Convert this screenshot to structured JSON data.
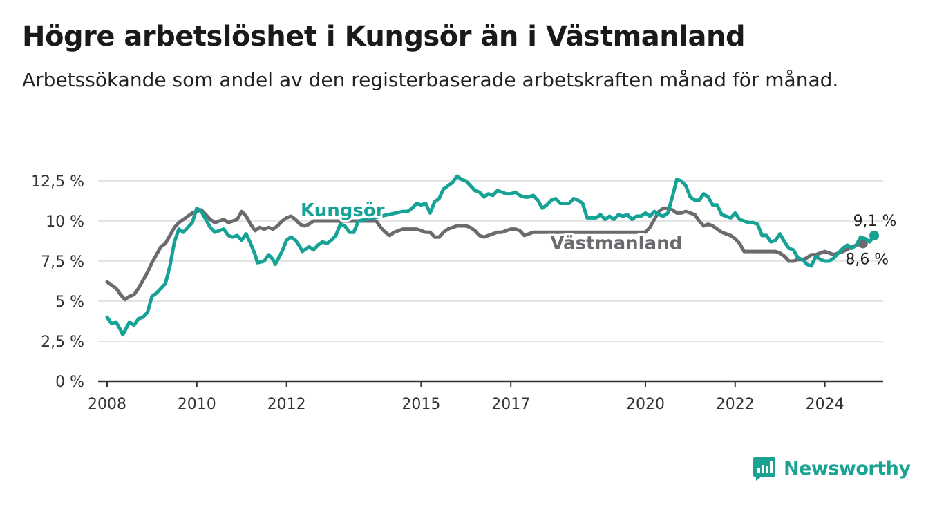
{
  "title": "Högre arbetslöshet i Kungsör än i Västmanland",
  "subtitle": "Arbetssökande som andel av den registerbaserade arbetskraften månad för månad.",
  "brand": {
    "name": "Newsworthy",
    "icon": "newsworthy-logo-icon",
    "color": "#1aa293"
  },
  "chart_data": {
    "type": "line",
    "x_unit": "year",
    "y_unit": "%",
    "ylim": [
      0,
      12.5
    ],
    "xlim": [
      2007.8,
      2025.0
    ],
    "y_ticks": [
      {
        "value": 0,
        "label": "0 %"
      },
      {
        "value": 2.5,
        "label": "2,5 %"
      },
      {
        "value": 5,
        "label": "5 %"
      },
      {
        "value": 7.5,
        "label": "7,5 %"
      },
      {
        "value": 10,
        "label": "10 %"
      },
      {
        "value": 12.5,
        "label": "12,5 %"
      }
    ],
    "x_ticks": [
      {
        "value": 2008,
        "label": "2008"
      },
      {
        "value": 2010,
        "label": "2010"
      },
      {
        "value": 2012,
        "label": "2012"
      },
      {
        "value": 2015,
        "label": "2015"
      },
      {
        "value": 2017,
        "label": "2017"
      },
      {
        "value": 2020,
        "label": "2020"
      },
      {
        "value": 2022,
        "label": "2022"
      },
      {
        "value": 2024,
        "label": "2024"
      }
    ],
    "grid": true,
    "series": [
      {
        "name": "Västmanland",
        "color": "#6b6a6e",
        "end_label": "8,6 %",
        "points": [
          [
            2008.0,
            6.2
          ],
          [
            2008.1,
            6.0
          ],
          [
            2008.2,
            5.8
          ],
          [
            2008.3,
            5.4
          ],
          [
            2008.4,
            5.1
          ],
          [
            2008.5,
            5.3
          ],
          [
            2008.6,
            5.4
          ],
          [
            2008.7,
            5.8
          ],
          [
            2008.8,
            6.3
          ],
          [
            2008.9,
            6.8
          ],
          [
            2009.0,
            7.4
          ],
          [
            2009.1,
            7.9
          ],
          [
            2009.2,
            8.4
          ],
          [
            2009.3,
            8.6
          ],
          [
            2009.4,
            9.1
          ],
          [
            2009.5,
            9.6
          ],
          [
            2009.6,
            9.9
          ],
          [
            2009.7,
            10.1
          ],
          [
            2009.8,
            10.3
          ],
          [
            2009.9,
            10.5
          ],
          [
            2010.0,
            10.6
          ],
          [
            2010.1,
            10.7
          ],
          [
            2010.2,
            10.4
          ],
          [
            2010.3,
            10.1
          ],
          [
            2010.4,
            9.9
          ],
          [
            2010.5,
            10.0
          ],
          [
            2010.6,
            10.1
          ],
          [
            2010.7,
            9.9
          ],
          [
            2010.8,
            10.0
          ],
          [
            2010.9,
            10.1
          ],
          [
            2011.0,
            10.6
          ],
          [
            2011.1,
            10.3
          ],
          [
            2011.2,
            9.8
          ],
          [
            2011.3,
            9.4
          ],
          [
            2011.4,
            9.6
          ],
          [
            2011.5,
            9.5
          ],
          [
            2011.6,
            9.6
          ],
          [
            2011.7,
            9.5
          ],
          [
            2011.8,
            9.7
          ],
          [
            2011.9,
            10.0
          ],
          [
            2012.0,
            10.2
          ],
          [
            2012.1,
            10.3
          ],
          [
            2012.2,
            10.1
          ],
          [
            2012.3,
            9.8
          ],
          [
            2012.4,
            9.7
          ],
          [
            2012.5,
            9.8
          ],
          [
            2012.6,
            10.0
          ],
          [
            2014.0,
            10.0
          ],
          [
            2014.1,
            9.6
          ],
          [
            2014.2,
            9.3
          ],
          [
            2014.3,
            9.1
          ],
          [
            2014.4,
            9.3
          ],
          [
            2014.5,
            9.4
          ],
          [
            2014.6,
            9.5
          ],
          [
            2014.7,
            9.5
          ],
          [
            2014.8,
            9.5
          ],
          [
            2014.9,
            9.5
          ],
          [
            2015.0,
            9.4
          ],
          [
            2015.1,
            9.3
          ],
          [
            2015.2,
            9.3
          ],
          [
            2015.3,
            9.0
          ],
          [
            2015.4,
            9.0
          ],
          [
            2015.5,
            9.3
          ],
          [
            2015.6,
            9.5
          ],
          [
            2015.7,
            9.6
          ],
          [
            2015.8,
            9.7
          ],
          [
            2015.9,
            9.7
          ],
          [
            2016.0,
            9.7
          ],
          [
            2016.1,
            9.6
          ],
          [
            2016.2,
            9.4
          ],
          [
            2016.3,
            9.1
          ],
          [
            2016.4,
            9.0
          ],
          [
            2016.5,
            9.1
          ],
          [
            2016.6,
            9.2
          ],
          [
            2016.7,
            9.3
          ],
          [
            2016.8,
            9.3
          ],
          [
            2016.9,
            9.4
          ],
          [
            2017.0,
            9.5
          ],
          [
            2017.1,
            9.5
          ],
          [
            2017.2,
            9.4
          ],
          [
            2017.3,
            9.1
          ],
          [
            2017.4,
            9.2
          ],
          [
            2017.5,
            9.3
          ],
          [
            2017.7,
            9.3
          ],
          [
            2017.85,
            9.3
          ],
          [
            2020.0,
            9.3
          ],
          [
            2020.1,
            9.6
          ],
          [
            2020.2,
            10.1
          ],
          [
            2020.3,
            10.6
          ],
          [
            2020.4,
            10.8
          ],
          [
            2020.5,
            10.8
          ],
          [
            2020.6,
            10.7
          ],
          [
            2020.7,
            10.5
          ],
          [
            2020.8,
            10.5
          ],
          [
            2020.9,
            10.6
          ],
          [
            2021.0,
            10.5
          ],
          [
            2021.1,
            10.4
          ],
          [
            2021.2,
            10.0
          ],
          [
            2021.3,
            9.7
          ],
          [
            2021.4,
            9.8
          ],
          [
            2021.5,
            9.7
          ],
          [
            2021.6,
            9.5
          ],
          [
            2021.7,
            9.3
          ],
          [
            2021.8,
            9.2
          ],
          [
            2021.9,
            9.1
          ],
          [
            2022.0,
            8.9
          ],
          [
            2022.1,
            8.6
          ],
          [
            2022.2,
            8.1
          ],
          [
            2022.3,
            8.1
          ],
          [
            2022.4,
            8.1
          ],
          [
            2022.5,
            8.1
          ],
          [
            2022.6,
            8.1
          ],
          [
            2022.7,
            8.1
          ],
          [
            2022.8,
            8.1
          ],
          [
            2022.9,
            8.1
          ],
          [
            2023.0,
            8.0
          ],
          [
            2023.1,
            7.8
          ],
          [
            2023.2,
            7.5
          ],
          [
            2023.3,
            7.5
          ],
          [
            2023.4,
            7.6
          ],
          [
            2023.5,
            7.6
          ],
          [
            2023.6,
            7.7
          ],
          [
            2023.7,
            7.9
          ],
          [
            2023.8,
            7.9
          ],
          [
            2023.9,
            8.0
          ],
          [
            2024.0,
            8.1
          ],
          [
            2024.1,
            8.0
          ],
          [
            2024.2,
            7.9
          ],
          [
            2024.4,
            8.1
          ],
          [
            2024.55,
            8.3
          ],
          [
            2024.7,
            8.5
          ],
          [
            2024.85,
            8.6
          ]
        ]
      },
      {
        "name": "Kungsör",
        "color": "#17a296",
        "end_label": "9,1 %",
        "points": [
          [
            2008.0,
            4.0
          ],
          [
            2008.1,
            3.6
          ],
          [
            2008.2,
            3.7
          ],
          [
            2008.3,
            3.2
          ],
          [
            2008.35,
            2.9
          ],
          [
            2008.5,
            3.7
          ],
          [
            2008.6,
            3.5
          ],
          [
            2008.7,
            3.9
          ],
          [
            2008.8,
            4.0
          ],
          [
            2008.9,
            4.3
          ],
          [
            2009.0,
            5.3
          ],
          [
            2009.1,
            5.5
          ],
          [
            2009.2,
            5.8
          ],
          [
            2009.3,
            6.1
          ],
          [
            2009.4,
            7.2
          ],
          [
            2009.5,
            8.7
          ],
          [
            2009.6,
            9.5
          ],
          [
            2009.7,
            9.3
          ],
          [
            2009.8,
            9.6
          ],
          [
            2009.9,
            9.9
          ],
          [
            2010.0,
            10.8
          ],
          [
            2010.1,
            10.6
          ],
          [
            2010.2,
            10.1
          ],
          [
            2010.3,
            9.6
          ],
          [
            2010.4,
            9.3
          ],
          [
            2010.5,
            9.4
          ],
          [
            2010.6,
            9.5
          ],
          [
            2010.7,
            9.1
          ],
          [
            2010.8,
            9.0
          ],
          [
            2010.9,
            9.1
          ],
          [
            2011.0,
            8.8
          ],
          [
            2011.1,
            9.2
          ],
          [
            2011.2,
            8.6
          ],
          [
            2011.3,
            7.9
          ],
          [
            2011.35,
            7.4
          ],
          [
            2011.5,
            7.5
          ],
          [
            2011.6,
            7.9
          ],
          [
            2011.7,
            7.6
          ],
          [
            2011.75,
            7.3
          ],
          [
            2011.9,
            8.1
          ],
          [
            2012.0,
            8.8
          ],
          [
            2012.1,
            9.0
          ],
          [
            2012.2,
            8.8
          ],
          [
            2012.3,
            8.4
          ],
          [
            2012.35,
            8.1
          ],
          [
            2012.5,
            8.4
          ],
          [
            2012.6,
            8.2
          ],
          [
            2012.7,
            8.5
          ],
          [
            2012.8,
            8.7
          ],
          [
            2012.9,
            8.6
          ],
          [
            2013.0,
            8.8
          ],
          [
            2013.1,
            9.1
          ],
          [
            2013.2,
            9.8
          ],
          [
            2013.3,
            9.7
          ],
          [
            2013.4,
            9.3
          ],
          [
            2013.5,
            9.3
          ],
          [
            2013.6,
            10.0
          ],
          [
            2014.6,
            10.6
          ],
          [
            2014.7,
            10.6
          ],
          [
            2014.8,
            10.8
          ],
          [
            2014.9,
            11.1
          ],
          [
            2015.0,
            11.0
          ],
          [
            2015.1,
            11.1
          ],
          [
            2015.2,
            10.5
          ],
          [
            2015.3,
            11.2
          ],
          [
            2015.4,
            11.4
          ],
          [
            2015.5,
            12.0
          ],
          [
            2015.6,
            12.2
          ],
          [
            2015.7,
            12.4
          ],
          [
            2015.8,
            12.8
          ],
          [
            2015.9,
            12.6
          ],
          [
            2016.0,
            12.5
          ],
          [
            2016.1,
            12.2
          ],
          [
            2016.2,
            11.9
          ],
          [
            2016.3,
            11.8
          ],
          [
            2016.4,
            11.5
          ],
          [
            2016.5,
            11.7
          ],
          [
            2016.6,
            11.6
          ],
          [
            2016.7,
            11.9
          ],
          [
            2016.8,
            11.8
          ],
          [
            2016.9,
            11.7
          ],
          [
            2017.0,
            11.7
          ],
          [
            2017.1,
            11.8
          ],
          [
            2017.2,
            11.6
          ],
          [
            2017.3,
            11.5
          ],
          [
            2017.4,
            11.5
          ],
          [
            2017.5,
            11.6
          ],
          [
            2017.6,
            11.3
          ],
          [
            2017.7,
            10.8
          ],
          [
            2017.8,
            11.0
          ],
          [
            2017.9,
            11.3
          ],
          [
            2018.0,
            11.4
          ],
          [
            2018.1,
            11.1
          ],
          [
            2018.2,
            11.1
          ],
          [
            2018.3,
            11.1
          ],
          [
            2018.4,
            11.4
          ],
          [
            2018.5,
            11.3
          ],
          [
            2018.6,
            11.1
          ],
          [
            2018.7,
            10.2
          ],
          [
            2018.8,
            10.2
          ],
          [
            2018.9,
            10.2
          ],
          [
            2019.0,
            10.4
          ],
          [
            2019.1,
            10.1
          ],
          [
            2019.2,
            10.3
          ],
          [
            2019.3,
            10.1
          ],
          [
            2019.4,
            10.4
          ],
          [
            2019.5,
            10.3
          ],
          [
            2019.6,
            10.4
          ],
          [
            2019.7,
            10.1
          ],
          [
            2019.8,
            10.3
          ],
          [
            2019.9,
            10.3
          ],
          [
            2020.0,
            10.5
          ],
          [
            2020.1,
            10.3
          ],
          [
            2020.2,
            10.6
          ],
          [
            2020.3,
            10.4
          ],
          [
            2020.4,
            10.3
          ],
          [
            2020.5,
            10.5
          ],
          [
            2020.6,
            11.5
          ],
          [
            2020.7,
            12.6
          ],
          [
            2020.8,
            12.5
          ],
          [
            2020.9,
            12.2
          ],
          [
            2021.0,
            11.5
          ],
          [
            2021.1,
            11.3
          ],
          [
            2021.2,
            11.3
          ],
          [
            2021.3,
            11.7
          ],
          [
            2021.4,
            11.5
          ],
          [
            2021.5,
            11.0
          ],
          [
            2021.6,
            11.0
          ],
          [
            2021.7,
            10.4
          ],
          [
            2021.8,
            10.3
          ],
          [
            2021.9,
            10.2
          ],
          [
            2022.0,
            10.5
          ],
          [
            2022.1,
            10.1
          ],
          [
            2022.2,
            10.0
          ],
          [
            2022.3,
            9.9
          ],
          [
            2022.4,
            9.9
          ],
          [
            2022.5,
            9.8
          ],
          [
            2022.6,
            9.1
          ],
          [
            2022.7,
            9.1
          ],
          [
            2022.8,
            8.7
          ],
          [
            2022.9,
            8.8
          ],
          [
            2023.0,
            9.2
          ],
          [
            2023.1,
            8.7
          ],
          [
            2023.2,
            8.3
          ],
          [
            2023.3,
            8.2
          ],
          [
            2023.4,
            7.7
          ],
          [
            2023.5,
            7.6
          ],
          [
            2023.6,
            7.3
          ],
          [
            2023.7,
            7.2
          ],
          [
            2023.8,
            7.8
          ],
          [
            2023.9,
            7.6
          ],
          [
            2024.0,
            7.5
          ],
          [
            2024.1,
            7.5
          ],
          [
            2024.2,
            7.7
          ],
          [
            2024.3,
            8.0
          ],
          [
            2024.4,
            8.3
          ],
          [
            2024.5,
            8.5
          ],
          [
            2024.6,
            8.3
          ],
          [
            2024.7,
            8.5
          ],
          [
            2024.8,
            9.0
          ],
          [
            2024.9,
            8.9
          ],
          [
            2025.0,
            8.7
          ],
          [
            2025.1,
            9.1
          ]
        ]
      }
    ]
  }
}
